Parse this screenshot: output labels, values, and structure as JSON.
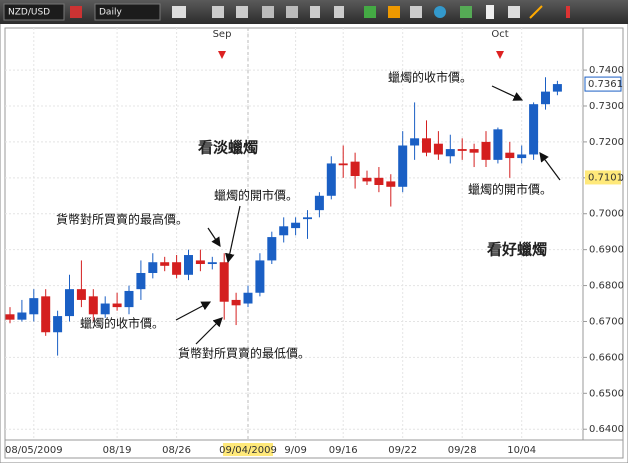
{
  "toolbar": {
    "symbol": "NZD/USD",
    "timeframe": "Daily"
  },
  "chart_data": {
    "type": "candlestick",
    "categories": [
      null,
      null,
      "08/05/2009",
      null,
      null,
      null,
      null,
      null,
      null,
      "08/19",
      null,
      null,
      null,
      null,
      "08/26",
      null,
      null,
      null,
      null,
      null,
      "09/04/2009",
      null,
      null,
      null,
      "9/09",
      null,
      null,
      null,
      "09/16",
      null,
      null,
      null,
      null,
      "09/22",
      null,
      null,
      null,
      null,
      "09/28",
      null,
      null,
      null,
      null,
      "10/04",
      null,
      null,
      null
    ],
    "open": [
      0.672,
      0.6705,
      0.672,
      0.677,
      0.667,
      0.6715,
      0.679,
      0.677,
      0.672,
      0.675,
      0.674,
      0.679,
      0.6835,
      0.6865,
      0.6865,
      0.683,
      0.687,
      0.686,
      0.6865,
      0.676,
      0.675,
      0.678,
      0.687,
      0.694,
      0.696,
      0.6985,
      0.701,
      0.705,
      0.714,
      0.7145,
      0.71,
      0.71,
      0.709,
      0.7075,
      0.719,
      0.721,
      0.7195,
      0.716,
      0.718,
      0.718,
      0.72,
      0.715,
      0.717,
      0.7155,
      0.7165,
      0.7305,
      0.734
    ],
    "high": [
      0.674,
      0.676,
      0.679,
      0.679,
      0.673,
      0.683,
      0.687,
      0.679,
      0.677,
      0.678,
      0.68,
      0.687,
      0.689,
      0.688,
      0.6885,
      0.69,
      0.69,
      0.688,
      0.689,
      0.678,
      0.68,
      0.689,
      0.695,
      0.699,
      0.699,
      0.701,
      0.706,
      0.716,
      0.719,
      0.717,
      0.712,
      0.713,
      0.711,
      0.723,
      0.731,
      0.726,
      0.723,
      0.722,
      0.721,
      0.7195,
      0.723,
      0.724,
      0.72,
      0.719,
      0.731,
      0.738,
      0.737
    ],
    "low": [
      0.6695,
      0.67,
      0.67,
      0.666,
      0.6605,
      0.67,
      0.674,
      0.67,
      0.671,
      0.673,
      0.672,
      0.676,
      0.682,
      0.684,
      0.682,
      0.6815,
      0.684,
      0.6845,
      0.6705,
      0.669,
      0.674,
      0.677,
      0.686,
      0.692,
      0.694,
      0.693,
      0.699,
      0.704,
      0.71,
      0.707,
      0.708,
      0.706,
      0.702,
      0.706,
      0.715,
      0.716,
      0.715,
      0.714,
      0.715,
      0.713,
      0.713,
      0.714,
      0.71,
      0.714,
      0.715,
      0.729,
      0.733
    ],
    "close": [
      0.6705,
      0.6725,
      0.6765,
      0.667,
      0.6715,
      0.679,
      0.676,
      0.672,
      0.675,
      0.674,
      0.6785,
      0.6835,
      0.6865,
      0.6855,
      0.683,
      0.6885,
      0.686,
      0.6865,
      0.6755,
      0.6745,
      0.678,
      0.687,
      0.6935,
      0.6965,
      0.6975,
      0.699,
      0.705,
      0.714,
      0.7135,
      0.7105,
      0.709,
      0.708,
      0.7075,
      0.719,
      0.721,
      0.717,
      0.7165,
      0.718,
      0.7175,
      0.717,
      0.715,
      0.7235,
      0.7155,
      0.7165,
      0.7305,
      0.734,
      0.7361
    ],
    "up_color": "#1a5fc4",
    "down_color": "#d41f1f",
    "ylim": [
      0.637,
      0.7506
    ],
    "yticks": [
      {
        "value": 0.64,
        "label": "0.6400"
      },
      {
        "value": 0.65,
        "label": "0.6500"
      },
      {
        "value": 0.66,
        "label": "0.6600"
      },
      {
        "value": 0.67,
        "label": "0.6700"
      },
      {
        "value": 0.68,
        "label": "0.6800"
      },
      {
        "value": 0.69,
        "label": "0.6900"
      },
      {
        "value": 0.7,
        "label": "0.7000"
      },
      {
        "value": 0.71,
        "label": "0.7100"
      },
      {
        "value": 0.72,
        "label": "0.7200"
      },
      {
        "value": 0.73,
        "label": "0.7300"
      },
      {
        "value": 0.74,
        "label": "0.7400"
      }
    ],
    "grid": true,
    "last_price": 0.7361,
    "crosshair_price": 0.7101,
    "crosshair_index": 20,
    "month_labels": [
      "Sep",
      "Oct"
    ],
    "annotations": [
      "看淡蠟燭",
      "看好蠟燭",
      "蠟燭的收市價。",
      "蠟燭的開市價。",
      "貨幣對所買賣的最高價。",
      "蠟燭的開市價。",
      "蠟燭的收市價。",
      "貨幣對所買賣的最低價。"
    ]
  }
}
